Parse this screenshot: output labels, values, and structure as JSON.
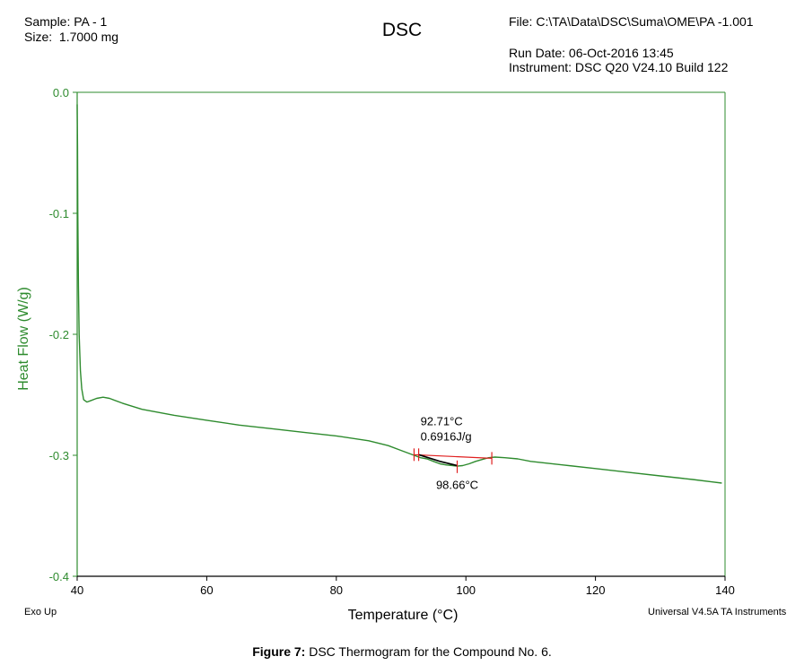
{
  "header": {
    "sample": "Sample: PA - 1",
    "size": "Size:  1.7000 mg",
    "file": "File: C:\\TA\\Data\\DSC\\Suma\\OME\\PA -1.001",
    "run_date": "Run Date: 06-Oct-2016 13:45",
    "instrument": "Instrument: DSC Q20 V24.10 Build 122"
  },
  "footer": {
    "exo": "Exo Up",
    "software": "Universal V4.5A TA Instruments"
  },
  "caption": {
    "label": "Figure 7:",
    "text": " DSC Thermogram for the Compound No. 6."
  },
  "colors": {
    "curve": "#2e8b2e",
    "axis": "#2e8b2e",
    "baseline": "#e02020",
    "integration": "#000000"
  },
  "chart_data": {
    "type": "line",
    "title": "DSC",
    "xlabel": "Temperature (°C)",
    "ylabel": "Heat Flow (W/g)",
    "xlim": [
      40,
      140
    ],
    "ylim": [
      -0.4,
      0.0
    ],
    "xticks": [
      40,
      60,
      80,
      100,
      120,
      140
    ],
    "yticks": [
      0.0,
      -0.1,
      -0.2,
      -0.3,
      -0.4
    ],
    "xtick_labels": [
      "40",
      "60",
      "80",
      "100",
      "120",
      "140"
    ],
    "ytick_labels": [
      "0.0",
      "-0.1",
      "-0.2",
      "-0.3",
      "-0.4"
    ],
    "grid": false,
    "series": [
      {
        "x": [
          40.0,
          40.05,
          40.1,
          40.2,
          40.3,
          40.5,
          40.7,
          41.0,
          41.5,
          42.0,
          43.0,
          44.0,
          45.0,
          47.0,
          50.0,
          55.0,
          60.0,
          65.0,
          70.0,
          75.0,
          80.0,
          85.0,
          88.0,
          90.0,
          92.0,
          93.0,
          94.0,
          95.0,
          96.0,
          97.0,
          98.0,
          98.66,
          99.5,
          100.5,
          101.5,
          102.5,
          103.5,
          104.5,
          106.0,
          108.0,
          110.0,
          115.0,
          120.0,
          125.0,
          130.0,
          135.0,
          138.0,
          139.5
        ],
        "y": [
          -0.01,
          -0.045,
          -0.1,
          -0.16,
          -0.2,
          -0.23,
          -0.245,
          -0.254,
          -0.256,
          -0.255,
          -0.253,
          -0.252,
          -0.253,
          -0.257,
          -0.262,
          -0.267,
          -0.271,
          -0.275,
          -0.278,
          -0.281,
          -0.284,
          -0.288,
          -0.292,
          -0.296,
          -0.3,
          -0.302,
          -0.303,
          -0.305,
          -0.307,
          -0.308,
          -0.3085,
          -0.309,
          -0.3085,
          -0.307,
          -0.305,
          -0.3035,
          -0.302,
          -0.3015,
          -0.302,
          -0.303,
          -0.305,
          -0.308,
          -0.311,
          -0.314,
          -0.317,
          -0.32,
          -0.322,
          -0.323
        ]
      }
    ],
    "annotations": {
      "onset_label": "92.71°C",
      "enthalpy_label": "0.6916J/g",
      "peak_label": "98.66°C",
      "onset_x": 92.71,
      "peak_x": 98.66,
      "baseline": {
        "x": [
          92.0,
          104.0
        ],
        "y": [
          -0.2995,
          -0.3025
        ]
      },
      "integration": {
        "x": [
          92.71,
          96.0,
          98.66
        ],
        "y": [
          -0.2995,
          -0.305,
          -0.3085
        ]
      },
      "limit_marks_x": [
        92.0,
        92.71,
        98.66,
        104.0
      ]
    }
  }
}
